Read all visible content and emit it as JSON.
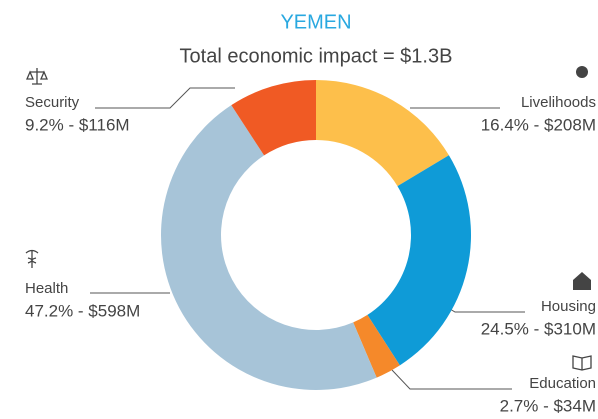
{
  "chart_data": {
    "type": "pie",
    "title": "YEMEN",
    "subtitle": "Total economic impact = $1.3B",
    "categories": [
      "Livelihoods",
      "Housing",
      "Education",
      "Health",
      "Security"
    ],
    "values": [
      16.4,
      24.5,
      2.7,
      47.2,
      9.2
    ],
    "value_labels": [
      "16.4% - $208M",
      "24.5% - $310M",
      "2.7% - $34M",
      "47.2% - $598M",
      "9.2% - $116M"
    ],
    "colors": [
      "#fdbf4b",
      "#0f9bd7",
      "#f5892a",
      "#a7c4d8",
      "#f05a24"
    ]
  }
}
